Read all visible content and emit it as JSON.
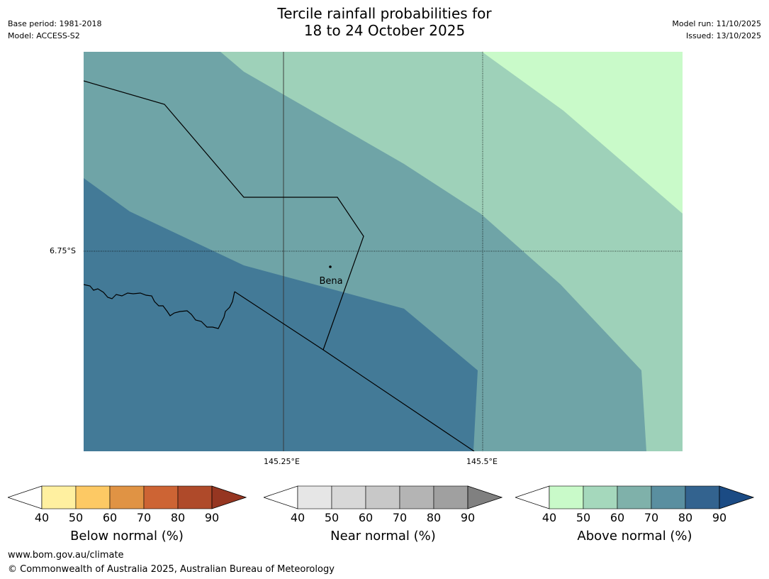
{
  "header": {
    "title_line1": "Tercile rainfall probabilities for",
    "title_line2": "18 to 24 October 2025",
    "base_period": "Base period: 1981-2018",
    "model": "Model: ACCESS-S2",
    "model_run": "Model run: 11/10/2025",
    "issued": "Issued: 13/10/2025"
  },
  "map": {
    "lat_label": "6.75°S",
    "lon_labels": [
      "145.25°E",
      "145.5°E"
    ],
    "place": "Bena",
    "colors": {
      "above_40_50": "#c9fac9",
      "above_50_60": "#9ed1b9",
      "above_60_70": "#6fa4a7",
      "above_70_80": "#437a97"
    }
  },
  "colorbars": [
    {
      "title": "Below normal (%)",
      "ticks": [
        "40",
        "50",
        "60",
        "70",
        "80",
        "90"
      ],
      "colors": [
        "#fff0a0",
        "#fdc964",
        "#e09344",
        "#cd6434",
        "#af4a2a"
      ],
      "extend_color": "#963621"
    },
    {
      "title": "Near normal (%)",
      "ticks": [
        "40",
        "50",
        "60",
        "70",
        "80",
        "90"
      ],
      "colors": [
        "#e6e6e6",
        "#d8d8d8",
        "#c8c8c8",
        "#b4b4b4",
        "#a0a0a0"
      ],
      "extend_color": "#808080"
    },
    {
      "title": "Above normal (%)",
      "ticks": [
        "40",
        "50",
        "60",
        "70",
        "80",
        "90"
      ],
      "colors": [
        "#c9fac9",
        "#a5d8bc",
        "#7fb1aa",
        "#5a8fa0",
        "#33638f"
      ],
      "extend_color": "#1b4b84"
    }
  ],
  "footer": {
    "url": "www.bom.gov.au/climate",
    "copyright": "© Commonwealth of Australia 2025, Australian Bureau of Meteorology"
  }
}
